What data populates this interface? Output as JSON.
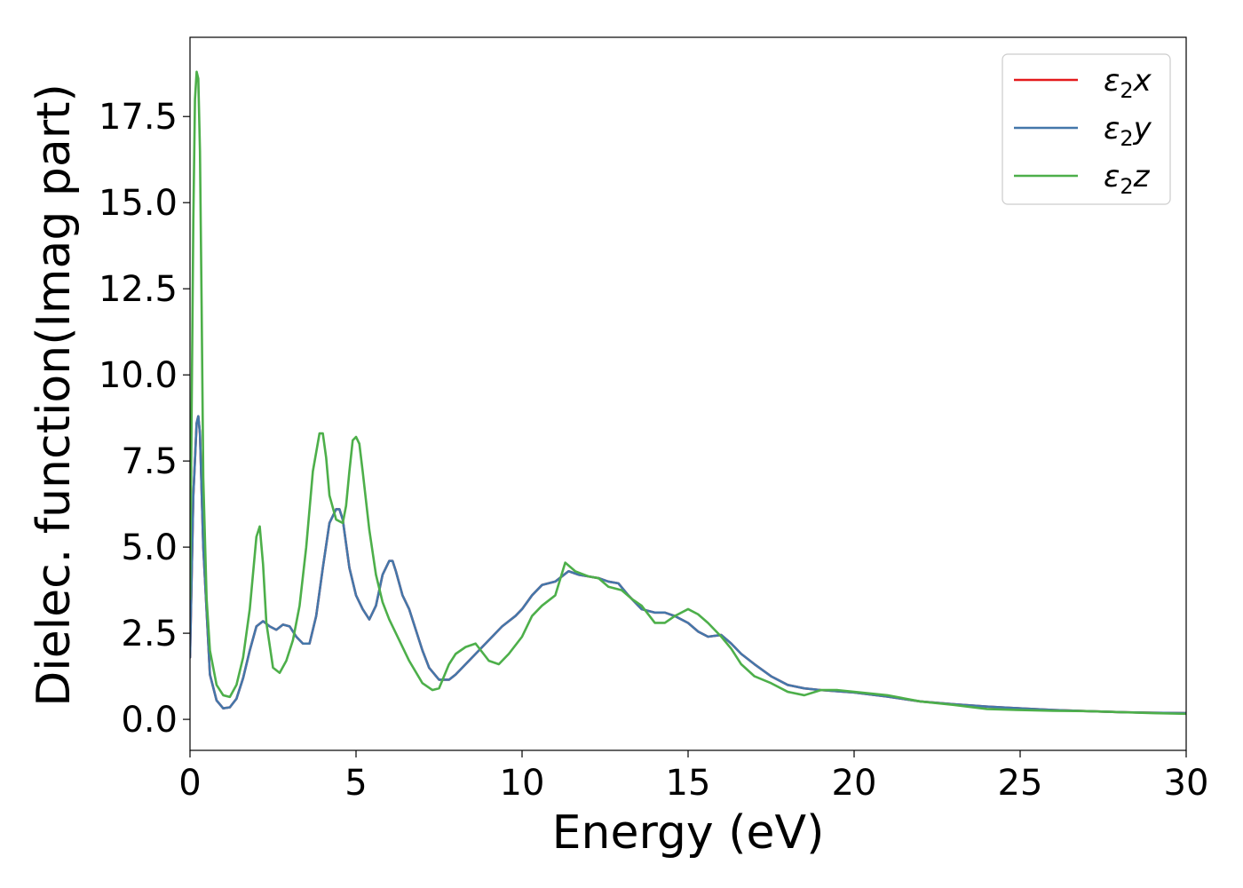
{
  "chart_data": {
    "type": "line",
    "title": "",
    "xlabel": "Energy (eV)",
    "ylabel": "Dielec. function(Imag part)",
    "xlim": [
      0,
      30
    ],
    "ylim": [
      -0.9,
      19.8
    ],
    "xticks": [
      0,
      5,
      10,
      15,
      20,
      25,
      30
    ],
    "xtick_labels": [
      "0",
      "5",
      "10",
      "15",
      "20",
      "25",
      "30"
    ],
    "yticks": [
      0.0,
      2.5,
      5.0,
      7.5,
      10.0,
      12.5,
      15.0,
      17.5
    ],
    "ytick_labels": [
      "0.0",
      "2.5",
      "5.0",
      "7.5",
      "10.0",
      "12.5",
      "15.0",
      "17.5"
    ],
    "grid": false,
    "legend_position": "top-right",
    "series": [
      {
        "name_main": "ε",
        "name_sub": "2",
        "name_suffix": "x",
        "color": "#e41a1c",
        "x": [
          0,
          0.1,
          0.2,
          0.25,
          0.3,
          0.4,
          0.6,
          0.8,
          1.0,
          1.2,
          1.4,
          1.6,
          1.8,
          2.0,
          2.2,
          2.4,
          2.6,
          2.8,
          3.0,
          3.2,
          3.4,
          3.6,
          3.8,
          4.0,
          4.2,
          4.4,
          4.5,
          4.6,
          4.8,
          5.0,
          5.2,
          5.4,
          5.6,
          5.8,
          6.0,
          6.1,
          6.2,
          6.4,
          6.6,
          6.8,
          7.0,
          7.2,
          7.5,
          7.8,
          8.0,
          8.3,
          8.6,
          9.0,
          9.4,
          9.8,
          10.0,
          10.3,
          10.6,
          11.0,
          11.4,
          11.7,
          12.0,
          12.3,
          12.6,
          12.9,
          13.2,
          13.6,
          14.0,
          14.3,
          14.6,
          15.0,
          15.3,
          15.6,
          16.0,
          16.3,
          16.6,
          17.0,
          17.5,
          18.0,
          18.5,
          19.0,
          20.0,
          21.0,
          22.0,
          23.0,
          24.0,
          25.0,
          26.0,
          27.0,
          28.0,
          29.0,
          30.0
        ],
        "y": [
          1.8,
          6.5,
          8.6,
          8.8,
          8.3,
          5.0,
          1.3,
          0.55,
          0.32,
          0.35,
          0.6,
          1.2,
          2.0,
          2.7,
          2.85,
          2.7,
          2.6,
          2.75,
          2.7,
          2.4,
          2.2,
          2.2,
          3.0,
          4.4,
          5.7,
          6.1,
          6.1,
          5.8,
          4.4,
          3.6,
          3.2,
          2.9,
          3.3,
          4.2,
          4.6,
          4.6,
          4.3,
          3.6,
          3.2,
          2.6,
          2.0,
          1.5,
          1.15,
          1.15,
          1.3,
          1.6,
          1.9,
          2.3,
          2.7,
          3.0,
          3.2,
          3.6,
          3.9,
          4.0,
          4.3,
          4.2,
          4.15,
          4.1,
          4.0,
          3.95,
          3.6,
          3.2,
          3.1,
          3.1,
          3.0,
          2.8,
          2.55,
          2.4,
          2.45,
          2.2,
          1.9,
          1.6,
          1.25,
          1.0,
          0.9,
          0.85,
          0.78,
          0.66,
          0.52,
          0.44,
          0.37,
          0.32,
          0.27,
          0.24,
          0.21,
          0.19,
          0.18
        ]
      },
      {
        "name_main": "ε",
        "name_sub": "2",
        "name_suffix": "y",
        "color": "#4477aa",
        "x": [
          0,
          0.1,
          0.2,
          0.25,
          0.3,
          0.4,
          0.6,
          0.8,
          1.0,
          1.2,
          1.4,
          1.6,
          1.8,
          2.0,
          2.2,
          2.4,
          2.6,
          2.8,
          3.0,
          3.2,
          3.4,
          3.6,
          3.8,
          4.0,
          4.2,
          4.4,
          4.5,
          4.6,
          4.8,
          5.0,
          5.2,
          5.4,
          5.6,
          5.8,
          6.0,
          6.1,
          6.2,
          6.4,
          6.6,
          6.8,
          7.0,
          7.2,
          7.5,
          7.8,
          8.0,
          8.3,
          8.6,
          9.0,
          9.4,
          9.8,
          10.0,
          10.3,
          10.6,
          11.0,
          11.4,
          11.7,
          12.0,
          12.3,
          12.6,
          12.9,
          13.2,
          13.6,
          14.0,
          14.3,
          14.6,
          15.0,
          15.3,
          15.6,
          16.0,
          16.3,
          16.6,
          17.0,
          17.5,
          18.0,
          18.5,
          19.0,
          20.0,
          21.0,
          22.0,
          23.0,
          24.0,
          25.0,
          26.0,
          27.0,
          28.0,
          29.0,
          30.0
        ],
        "y": [
          1.8,
          6.5,
          8.6,
          8.8,
          8.3,
          5.0,
          1.3,
          0.55,
          0.32,
          0.35,
          0.6,
          1.2,
          2.0,
          2.7,
          2.85,
          2.7,
          2.6,
          2.75,
          2.7,
          2.4,
          2.2,
          2.2,
          3.0,
          4.4,
          5.7,
          6.1,
          6.1,
          5.8,
          4.4,
          3.6,
          3.2,
          2.9,
          3.3,
          4.2,
          4.6,
          4.6,
          4.3,
          3.6,
          3.2,
          2.6,
          2.0,
          1.5,
          1.15,
          1.15,
          1.3,
          1.6,
          1.9,
          2.3,
          2.7,
          3.0,
          3.2,
          3.6,
          3.9,
          4.0,
          4.3,
          4.2,
          4.15,
          4.1,
          4.0,
          3.95,
          3.6,
          3.2,
          3.1,
          3.1,
          3.0,
          2.8,
          2.55,
          2.4,
          2.45,
          2.2,
          1.9,
          1.6,
          1.25,
          1.0,
          0.9,
          0.85,
          0.78,
          0.66,
          0.52,
          0.44,
          0.37,
          0.32,
          0.27,
          0.24,
          0.21,
          0.19,
          0.18
        ]
      },
      {
        "name_main": "ε",
        "name_sub": "2",
        "name_suffix": "z",
        "color": "#4daf4a",
        "x": [
          0,
          0.05,
          0.1,
          0.15,
          0.2,
          0.25,
          0.3,
          0.35,
          0.4,
          0.5,
          0.6,
          0.8,
          1.0,
          1.2,
          1.4,
          1.6,
          1.8,
          2.0,
          2.1,
          2.2,
          2.3,
          2.5,
          2.7,
          2.9,
          3.1,
          3.3,
          3.5,
          3.7,
          3.9,
          4.0,
          4.1,
          4.2,
          4.4,
          4.6,
          4.7,
          4.8,
          4.9,
          5.0,
          5.1,
          5.2,
          5.4,
          5.6,
          5.8,
          6.0,
          6.3,
          6.6,
          7.0,
          7.3,
          7.5,
          7.8,
          8.0,
          8.3,
          8.6,
          9.0,
          9.3,
          9.6,
          10.0,
          10.3,
          10.6,
          11.0,
          11.3,
          11.6,
          12.0,
          12.3,
          12.6,
          13.0,
          13.3,
          13.6,
          14.0,
          14.3,
          14.6,
          15.0,
          15.3,
          15.6,
          16.0,
          16.3,
          16.6,
          17.0,
          17.5,
          18.0,
          18.5,
          19.0,
          19.5,
          20.0,
          21.0,
          22.0,
          23.0,
          24.0,
          25.0,
          26.0,
          27.0,
          28.0,
          29.0,
          30.0
        ],
        "y": [
          3.5,
          9.0,
          14.5,
          18.0,
          18.8,
          18.6,
          16.5,
          12.0,
          7.0,
          3.5,
          2.0,
          1.0,
          0.7,
          0.65,
          1.0,
          1.8,
          3.2,
          5.3,
          5.6,
          4.5,
          2.8,
          1.5,
          1.35,
          1.7,
          2.3,
          3.3,
          5.0,
          7.2,
          8.3,
          8.3,
          7.6,
          6.5,
          5.8,
          5.7,
          6.2,
          7.2,
          8.1,
          8.2,
          8.0,
          7.2,
          5.5,
          4.2,
          3.4,
          2.9,
          2.3,
          1.7,
          1.05,
          0.85,
          0.9,
          1.6,
          1.9,
          2.1,
          2.2,
          1.7,
          1.6,
          1.9,
          2.4,
          3.0,
          3.3,
          3.6,
          4.55,
          4.3,
          4.15,
          4.1,
          3.85,
          3.75,
          3.5,
          3.3,
          2.8,
          2.8,
          3.0,
          3.2,
          3.05,
          2.8,
          2.4,
          2.05,
          1.6,
          1.25,
          1.05,
          0.8,
          0.7,
          0.85,
          0.85,
          0.8,
          0.7,
          0.52,
          0.42,
          0.3,
          0.27,
          0.25,
          0.24,
          0.21,
          0.18,
          0.16
        ]
      }
    ]
  }
}
